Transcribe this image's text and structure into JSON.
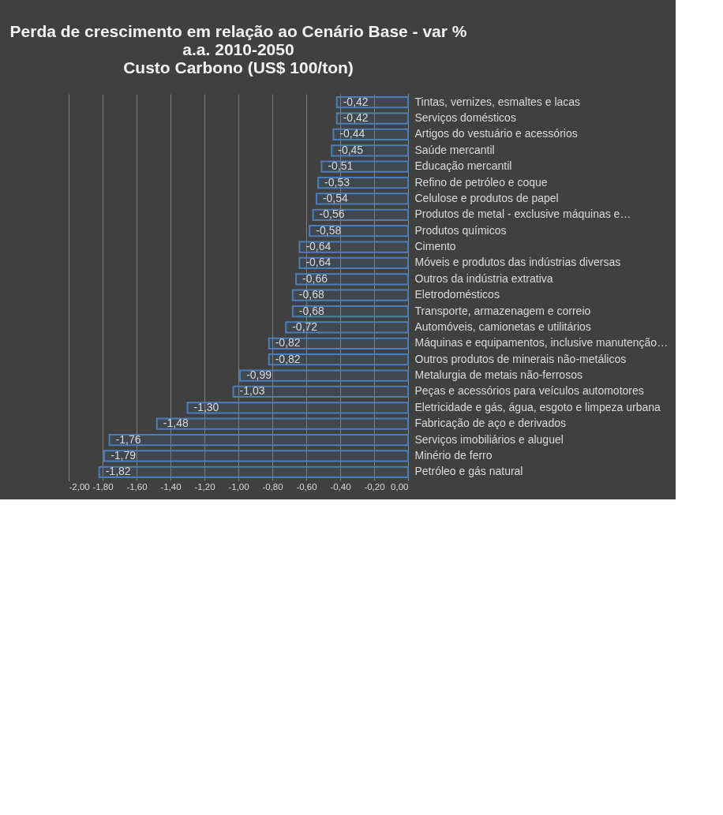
{
  "chart_data": {
    "type": "bar",
    "orientation": "horizontal",
    "title": [
      "Perda de crescimento em relação ao Cenário Base - var %",
      "a.a. 2010-2050",
      "Custo Carbono (US$ 100/ton)"
    ],
    "categories": [
      "Tintas, vernizes, esmaltes e lacas",
      "Serviços domésticos",
      "Artigos do vestuário e acessórios",
      "Saúde mercantil",
      "Educação mercantil",
      "Refino de petróleo e coque",
      "Celulose e produtos de papel",
      "Produtos de metal - exclusive máquinas e…",
      "Produtos  químicos",
      "Cimento",
      "Móveis e produtos das indústrias diversas",
      "Outros da indústria extrativa",
      "Eletrodomésticos",
      "Transporte, armazenagem e correio",
      "Automóveis, camionetas e utilitários",
      "Máquinas e equipamentos, inclusive manutenção…",
      "Outros produtos de minerais não-metálicos",
      "Metalurgia de metais não-ferrosos",
      "Peças e acessórios para veículos automotores",
      "Eletricidade e gás, água, esgoto e limpeza urbana",
      "Fabricação de aço e derivados",
      "Serviços imobiliários e aluguel",
      "Minério de ferro",
      "Petróleo e gás natural"
    ],
    "series": [
      {
        "color": "#4a7ebb",
        "values": [
          -0.42,
          -0.42,
          -0.44,
          -0.45,
          -0.51,
          -0.53,
          -0.54,
          -0.56,
          -0.58,
          -0.64,
          -0.64,
          -0.66,
          -0.68,
          -0.68,
          -0.72,
          -0.82,
          -0.82,
          -0.99,
          -1.03,
          -1.3,
          -1.48,
          -1.76,
          -1.79,
          -1.82
        ],
        "value_labels": [
          "-0,42",
          "-0,42",
          "-0,44",
          "-0,45",
          "-0,51",
          "-0,53",
          "-0,54",
          "-0,56",
          "-0,58",
          "-0,64",
          "-0,64",
          "-0,66",
          "-0,68",
          "-0,68",
          "-0,72",
          "-0,82",
          "-0,82",
          "-0,99",
          "-1,03",
          "-1,30",
          "-1,48",
          "-1,76",
          "-1,79",
          "-1,82"
        ]
      }
    ],
    "xlim": [
      -2,
      0
    ],
    "xticks": [
      {
        "value": -2,
        "label": "-2,00"
      },
      {
        "value": -1.8,
        "label": "-1,80"
      },
      {
        "value": -1.6,
        "label": "-1,60"
      },
      {
        "value": -1.4,
        "label": "-1,40"
      },
      {
        "value": -1.2,
        "label": "-1,20"
      },
      {
        "value": -1,
        "label": "-1,00"
      },
      {
        "value": -0.8,
        "label": "-0,80"
      },
      {
        "value": -0.6,
        "label": "-0,60"
      },
      {
        "value": -0.4,
        "label": "-0,40"
      },
      {
        "value": -0.2,
        "label": "-0,20"
      },
      {
        "value": 0,
        "label": "0,00"
      }
    ],
    "grid": "x"
  }
}
